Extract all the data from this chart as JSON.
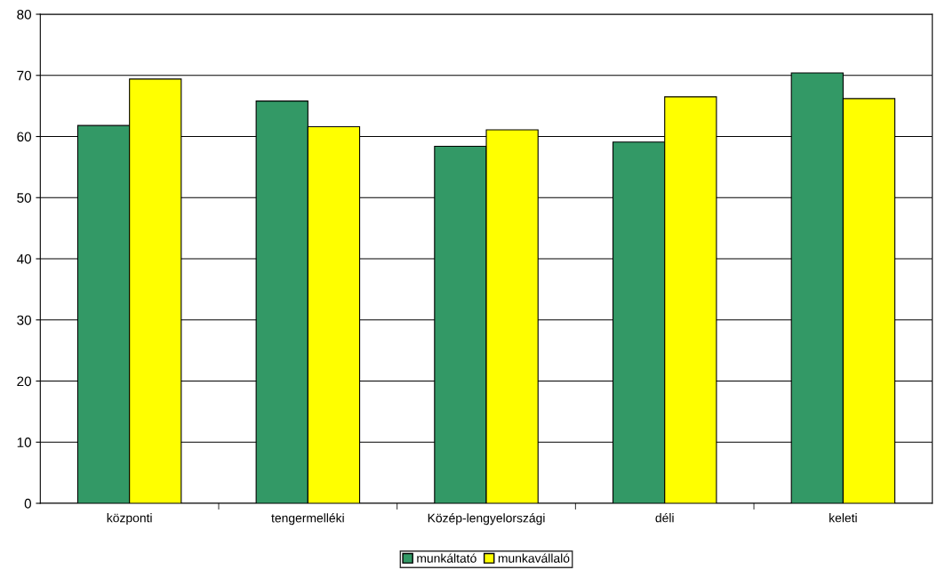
{
  "chart_data": {
    "type": "bar",
    "categories": [
      "központi",
      "tengermelléki",
      "Közép-lengyelországi",
      "déli",
      "keleti"
    ],
    "series": [
      {
        "name": "munkáltató",
        "color": "#339966",
        "values": [
          61.8,
          65.8,
          58.4,
          59.1,
          70.4
        ]
      },
      {
        "name": "munkavállaló",
        "color": "#ffff00",
        "values": [
          69.4,
          61.6,
          61.1,
          66.5,
          66.2
        ]
      }
    ],
    "ylim": [
      0,
      80
    ],
    "yticks": [
      0,
      10,
      20,
      30,
      40,
      50,
      60,
      70,
      80
    ],
    "grid": "y",
    "legend": "bottom"
  }
}
